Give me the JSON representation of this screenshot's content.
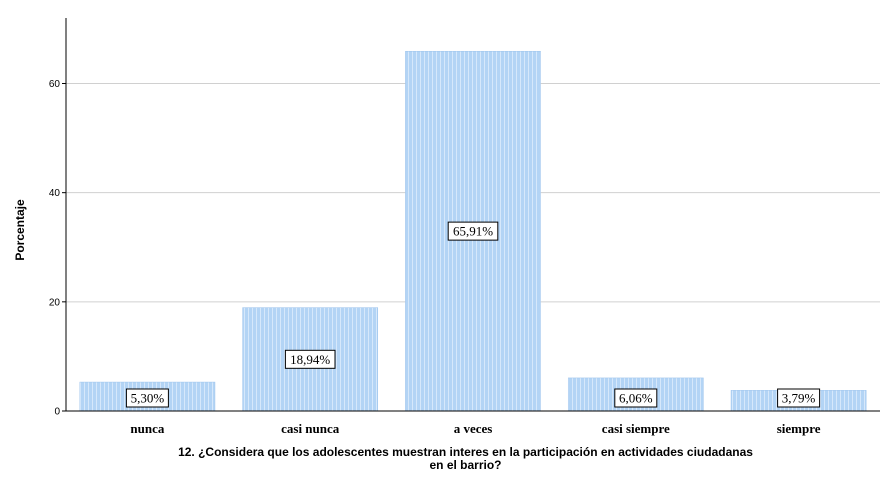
{
  "chart_data": {
    "type": "bar",
    "categories": [
      "nunca",
      "casi nunca",
      "a veces",
      "casi siempre",
      "siempre"
    ],
    "values": [
      5.3,
      18.94,
      65.91,
      6.06,
      3.79
    ],
    "data_labels": [
      "5,30%",
      "18,94%",
      "65,91%",
      "6,06%",
      "3,79%"
    ],
    "ylabel": "Porcentaje",
    "xlabel_line1": "12. ¿Considera que los adolescentes muestran interes en la participación en actividades ciudadanas",
    "xlabel_line2": "en el barrio?",
    "ylim": [
      0,
      72
    ],
    "yticks": [
      0,
      20,
      40,
      60
    ],
    "grid": true,
    "bar_color": "#b3d4f5",
    "bar_stripe_color": "#d6e8fb"
  }
}
